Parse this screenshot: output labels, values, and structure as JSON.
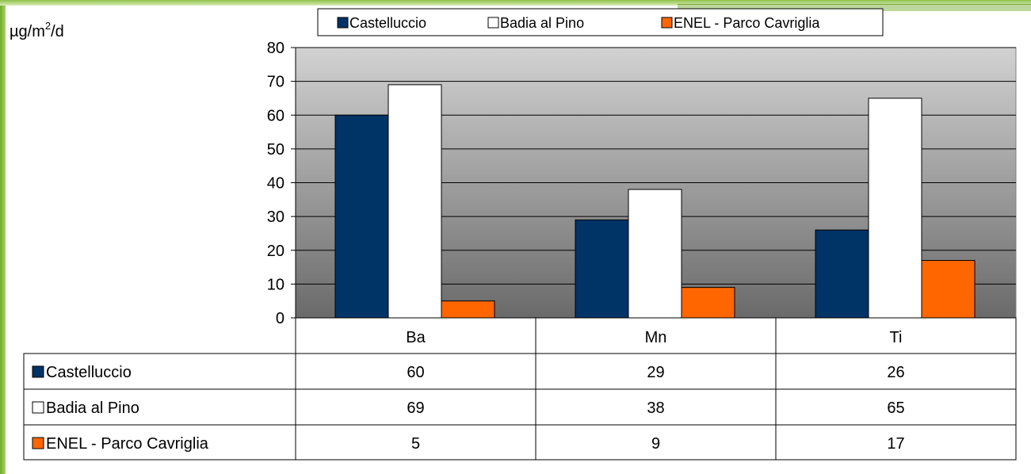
{
  "chart_data": {
    "type": "bar",
    "ylabel_base": "µg/m",
    "ylabel_sup": "2",
    "ylabel_tail": "/d",
    "categories": [
      "Ba",
      "Mn",
      "Ti"
    ],
    "ylim": [
      0,
      80
    ],
    "yticks": [
      "80",
      "70",
      "60",
      "50",
      "40",
      "30",
      "20",
      "10",
      "0"
    ],
    "grid": true,
    "legend_position": "top",
    "series": [
      {
        "name": "Castelluccio",
        "color": "#003366",
        "values": [
          60,
          29,
          26
        ]
      },
      {
        "name": "Badia al Pino",
        "color": "#ffffff",
        "values": [
          69,
          38,
          65
        ]
      },
      {
        "name": "ENEL - Parco Cavriglia",
        "color": "#ff6600",
        "values": [
          5,
          9,
          17
        ]
      }
    ],
    "data_table": {
      "rows": [
        {
          "label": "Castelluccio",
          "values": [
            "60",
            "29",
            "26"
          ]
        },
        {
          "label": "Badia al Pino",
          "values": [
            "69",
            "38",
            "65"
          ]
        },
        {
          "label": "ENEL - Parco Cavriglia",
          "values": [
            "5",
            "9",
            "17"
          ]
        }
      ]
    }
  }
}
